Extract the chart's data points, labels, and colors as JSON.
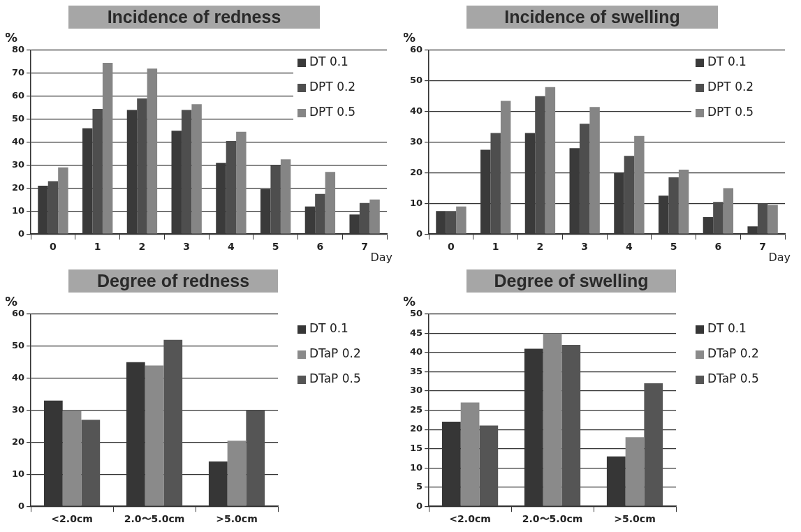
{
  "chart_data": [
    {
      "type": "bar",
      "title": "Incidence of redness",
      "xlabel": "Day",
      "ylabel": "%",
      "categories": [
        "0",
        "1",
        "2",
        "3",
        "4",
        "5",
        "6",
        "7"
      ],
      "ylim": [
        0,
        80
      ],
      "yticks": [
        0,
        10,
        20,
        30,
        40,
        50,
        60,
        70,
        80
      ],
      "grid": "y",
      "legend": "top right",
      "series": [
        {
          "name": "DT 0.1",
          "color": "#3a3a3a",
          "values": [
            21,
            46,
            54,
            45,
            31,
            19.5,
            12,
            8.5
          ]
        },
        {
          "name": "DPT 0.2",
          "color": "#4e4e4e",
          "values": [
            23,
            54.5,
            59,
            54,
            40.5,
            30,
            17.5,
            13.5
          ]
        },
        {
          "name": "DPT 0.5",
          "color": "#858585",
          "values": [
            29,
            74.5,
            72,
            56.5,
            44.5,
            32.5,
            27,
            15
          ]
        }
      ]
    },
    {
      "type": "bar",
      "title": "Incidence of swelling",
      "xlabel": "Day",
      "ylabel": "%",
      "categories": [
        "0",
        "1",
        "2",
        "3",
        "4",
        "5",
        "6",
        "7"
      ],
      "ylim": [
        0,
        60
      ],
      "yticks": [
        0,
        10,
        20,
        30,
        40,
        50,
        60
      ],
      "grid": "y",
      "legend": "top right",
      "series": [
        {
          "name": "DT 0.1",
          "color": "#3a3a3a",
          "values": [
            7.5,
            27.5,
            33,
            28,
            20,
            12.5,
            5.5,
            2.5
          ]
        },
        {
          "name": "DPT 0.2",
          "color": "#4e4e4e",
          "values": [
            7.5,
            33,
            45,
            36,
            25.5,
            18.5,
            10.5,
            10
          ]
        },
        {
          "name": "DPT 0.5",
          "color": "#858585",
          "values": [
            9,
            43.5,
            48,
            41.5,
            32,
            21,
            15,
            9.5
          ]
        }
      ]
    },
    {
      "type": "bar",
      "title": "Degree of redness",
      "ylabel": "%",
      "categories": [
        "<2.0cm",
        "2.0〜5.0cm",
        ">5.0cm"
      ],
      "ylim": [
        0,
        60
      ],
      "yticks": [
        0,
        10,
        20,
        30,
        40,
        50,
        60
      ],
      "grid": "y",
      "legend": "right",
      "series": [
        {
          "name": "DT 0.1",
          "color": "#363636",
          "values": [
            33,
            45,
            14
          ]
        },
        {
          "name": "DTaP 0.2",
          "color": "#8a8a8a",
          "values": [
            30,
            44,
            20.5
          ]
        },
        {
          "name": "DTaP 0.5",
          "color": "#555555",
          "values": [
            27,
            52,
            30
          ]
        }
      ]
    },
    {
      "type": "bar",
      "title": "Degree of swelling",
      "ylabel": "%",
      "categories": [
        "<2.0cm",
        "2.0〜5.0cm",
        ">5.0cm"
      ],
      "ylim": [
        0,
        50
      ],
      "yticks": [
        0,
        5,
        10,
        15,
        20,
        25,
        30,
        35,
        40,
        45,
        50
      ],
      "grid": "y",
      "legend": "right",
      "series": [
        {
          "name": "DT 0.1",
          "color": "#363636",
          "values": [
            22,
            41,
            13
          ]
        },
        {
          "name": "DTaP 0.2",
          "color": "#8a8a8a",
          "values": [
            27,
            45,
            18
          ]
        },
        {
          "name": "DTaP 0.5",
          "color": "#555555",
          "values": [
            21,
            42,
            32
          ]
        }
      ]
    }
  ]
}
